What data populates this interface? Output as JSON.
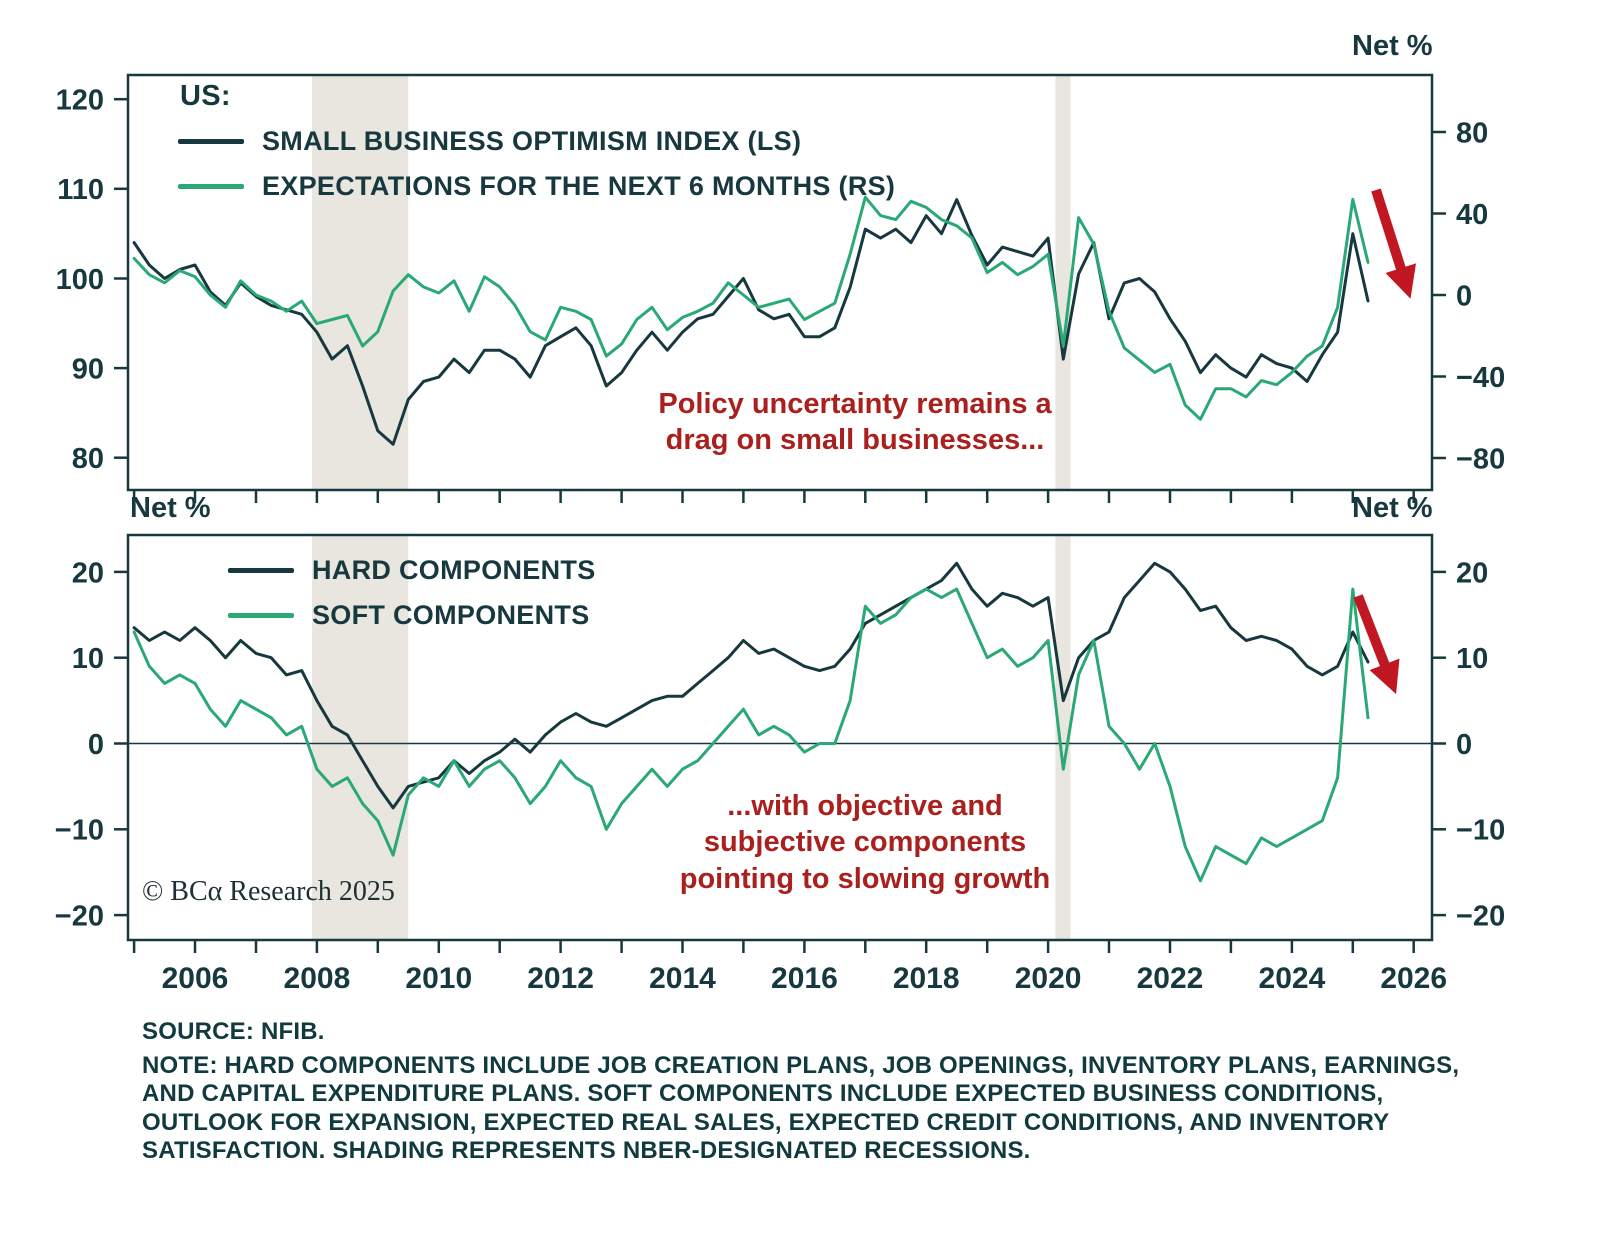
{
  "units": {
    "top_right": "Net %",
    "mid_left": "Net %",
    "mid_right": "Net %"
  },
  "annotations": {
    "top": "Policy uncertainty remains a\ndrag on small businesses...",
    "bottom": "...with objective and\nsubjective components\npointing to slowing growth",
    "color": "#A9201E"
  },
  "arrow_color": "#C01722",
  "branding": {
    "copyright": "© BCα Research 2025"
  },
  "footer": {
    "source": "SOURCE: NFIB.",
    "note": "NOTE: HARD COMPONENTS INCLUDE JOB CREATION PLANS, JOB OPENINGS, INVENTORY PLANS, EARNINGS,\nAND CAPITAL EXPENDITURE PLANS. SOFT COMPONENTS INCLUDE EXPECTED BUSINESS CONDITIONS,\nOUTLOOK FOR EXPANSION, EXPECTED REAL SALES, EXPECTED CREDIT CONDITIONS, AND INVENTORY\nSATISFACTION. SHADING REPRESENTS NBER-DESIGNATED RECESSIONS."
  },
  "x_axis": {
    "range": [
      2004.9,
      2026.3
    ],
    "labels": [
      2006,
      2008,
      2010,
      2012,
      2014,
      2016,
      2018,
      2020,
      2022,
      2024,
      2026
    ]
  },
  "recessions": {
    "bands": [
      [
        2007.92,
        2009.5
      ],
      [
        2020.12,
        2020.37
      ]
    ],
    "color": "#E8E6DF",
    "meaning": "NBER-designated recessions"
  },
  "chart_data": [
    {
      "type": "line",
      "panel": "top",
      "legend_heading": "US:",
      "x": [
        2005,
        2005.25,
        2005.5,
        2005.75,
        2006,
        2006.25,
        2006.5,
        2006.75,
        2007,
        2007.25,
        2007.5,
        2007.75,
        2008,
        2008.25,
        2008.5,
        2008.75,
        2009,
        2009.25,
        2009.5,
        2009.75,
        2010,
        2010.25,
        2010.5,
        2010.75,
        2011,
        2011.25,
        2011.5,
        2011.75,
        2012,
        2012.25,
        2012.5,
        2012.75,
        2013,
        2013.25,
        2013.5,
        2013.75,
        2014,
        2014.25,
        2014.5,
        2014.75,
        2015,
        2015.25,
        2015.5,
        2015.75,
        2016,
        2016.25,
        2016.5,
        2016.75,
        2017,
        2017.25,
        2017.5,
        2017.75,
        2018,
        2018.25,
        2018.5,
        2018.75,
        2019,
        2019.25,
        2019.5,
        2019.75,
        2020,
        2020.25,
        2020.5,
        2020.75,
        2021,
        2021.25,
        2021.5,
        2021.75,
        2022,
        2022.25,
        2022.5,
        2022.75,
        2023,
        2023.25,
        2023.5,
        2023.75,
        2024,
        2024.25,
        2024.5,
        2024.75,
        2025,
        2025.25
      ],
      "series": [
        {
          "name": "SMALL BUSINESS OPTIMISM INDEX (LS)",
          "axis": "left",
          "color": "#16383E",
          "values": [
            104,
            101.5,
            100,
            101,
            101.5,
            98.5,
            97,
            99.5,
            98,
            97,
            96.5,
            96,
            94,
            91,
            92.5,
            88,
            83,
            81.5,
            86.5,
            88.5,
            89,
            91,
            89.5,
            92,
            92,
            91,
            89,
            92.5,
            93.5,
            94.5,
            92.5,
            88,
            89.5,
            92,
            94,
            92,
            94,
            95.5,
            96,
            98,
            100,
            96.5,
            95.5,
            96,
            93.5,
            93.5,
            94.5,
            99,
            105.5,
            104.5,
            105.5,
            104,
            107,
            105,
            108.8,
            104.8,
            101.5,
            103.5,
            103,
            102.5,
            104.5,
            91,
            100.5,
            104,
            95.5,
            99.5,
            100,
            98.5,
            95.5,
            93,
            89.5,
            91.5,
            90,
            89,
            91.5,
            90.5,
            90,
            88.5,
            91.5,
            94,
            105,
            97.5
          ]
        },
        {
          "name": "EXPECTATIONS FOR THE NEXT 6 MONTHS (RS)",
          "axis": "right",
          "color": "#2AA876",
          "values": [
            18,
            10,
            6,
            12,
            9,
            0,
            -6,
            7,
            0,
            -3,
            -8,
            -3,
            -14,
            -12,
            -10,
            -25,
            -18,
            2,
            10,
            4,
            1,
            7,
            -8,
            9,
            4,
            -5,
            -18,
            -22,
            -6,
            -8,
            -12,
            -30,
            -24,
            -12,
            -6,
            -17,
            -11,
            -8,
            -4,
            6,
            0,
            -6,
            -4,
            -2,
            -12,
            -8,
            -4,
            20,
            48,
            39,
            37,
            46,
            43,
            37,
            34,
            28,
            11,
            16,
            10,
            14,
            20,
            -25,
            38,
            25,
            -8,
            -26,
            -32,
            -38,
            -34,
            -54,
            -61,
            -46,
            -46,
            -50,
            -42,
            -44,
            -38,
            -30,
            -25,
            -6,
            47,
            16
          ]
        }
      ],
      "left_axis": {
        "ticks": [
          120,
          110,
          100,
          90,
          80
        ],
        "edge_values": [
          76.4,
          122.7
        ]
      },
      "right_axis": {
        "label": "Net %",
        "ticks": [
          80,
          40,
          0,
          -40,
          -80
        ],
        "edge_values": [
          -95.7,
          108
        ]
      }
    },
    {
      "type": "line",
      "panel": "bottom",
      "zero_line": true,
      "x": [
        2005,
        2005.25,
        2005.5,
        2005.75,
        2006,
        2006.25,
        2006.5,
        2006.75,
        2007,
        2007.25,
        2007.5,
        2007.75,
        2008,
        2008.25,
        2008.5,
        2008.75,
        2009,
        2009.25,
        2009.5,
        2009.75,
        2010,
        2010.25,
        2010.5,
        2010.75,
        2011,
        2011.25,
        2011.5,
        2011.75,
        2012,
        2012.25,
        2012.5,
        2012.75,
        2013,
        2013.25,
        2013.5,
        2013.75,
        2014,
        2014.25,
        2014.5,
        2014.75,
        2015,
        2015.25,
        2015.5,
        2015.75,
        2016,
        2016.25,
        2016.5,
        2016.75,
        2017,
        2017.25,
        2017.5,
        2017.75,
        2018,
        2018.25,
        2018.5,
        2018.75,
        2019,
        2019.25,
        2019.5,
        2019.75,
        2020,
        2020.25,
        2020.5,
        2020.75,
        2021,
        2021.25,
        2021.5,
        2021.75,
        2022,
        2022.25,
        2022.5,
        2022.75,
        2023,
        2023.25,
        2023.5,
        2023.75,
        2024,
        2024.25,
        2024.5,
        2024.75,
        2025,
        2025.25
      ],
      "series": [
        {
          "name": "HARD COMPONENTS",
          "axis": "left",
          "color": "#16383E",
          "values": [
            13.5,
            12,
            13,
            12,
            13.5,
            12,
            10,
            12,
            10.5,
            10,
            8,
            8.5,
            5,
            2,
            1,
            -2,
            -5,
            -7.5,
            -5,
            -4.5,
            -4,
            -2,
            -3.5,
            -2,
            -1,
            0.5,
            -1,
            1,
            2.5,
            3.5,
            2.5,
            2,
            3,
            4,
            5,
            5.5,
            5.5,
            7,
            8.5,
            10,
            12,
            10.5,
            11,
            10,
            9,
            8.5,
            9,
            11,
            14,
            15,
            16,
            17,
            18,
            19,
            21,
            18,
            16,
            17.5,
            17,
            16,
            17,
            5,
            10,
            12,
            13,
            17,
            19,
            21,
            20,
            18,
            15.5,
            16,
            13.5,
            12,
            12.5,
            12,
            11,
            9,
            8,
            9,
            13,
            9.5
          ]
        },
        {
          "name": "SOFT COMPONENTS",
          "axis": "left",
          "color": "#2AA876",
          "values": [
            13,
            9,
            7,
            8,
            7,
            4,
            2,
            5,
            4,
            3,
            1,
            2,
            -3,
            -5,
            -4,
            -7,
            -9,
            -13,
            -6,
            -4,
            -5,
            -2,
            -5,
            -3,
            -2,
            -4,
            -7,
            -5,
            -2,
            -4,
            -5,
            -10,
            -7,
            -5,
            -3,
            -5,
            -3,
            -2,
            0,
            2,
            4,
            1,
            2,
            1,
            -1,
            0,
            0,
            5,
            16,
            14,
            15,
            17,
            18,
            17,
            18,
            14,
            10,
            11,
            9,
            10,
            12,
            -3,
            8,
            12,
            2,
            0,
            -3,
            0,
            -5,
            -12,
            -16,
            -12,
            -13,
            -14,
            -11,
            -12,
            -11,
            -10,
            -9,
            -4,
            18,
            3
          ]
        }
      ],
      "left_axis": {
        "label": "Net %",
        "ticks": [
          20,
          10,
          0,
          -10,
          -20
        ],
        "edge_values": [
          -22.9,
          24.3
        ]
      },
      "right_axis": {
        "label": "Net %",
        "ticks": [
          20,
          10,
          0,
          -10,
          -20
        ],
        "edge_values": [
          -22.9,
          24.3
        ]
      }
    }
  ]
}
